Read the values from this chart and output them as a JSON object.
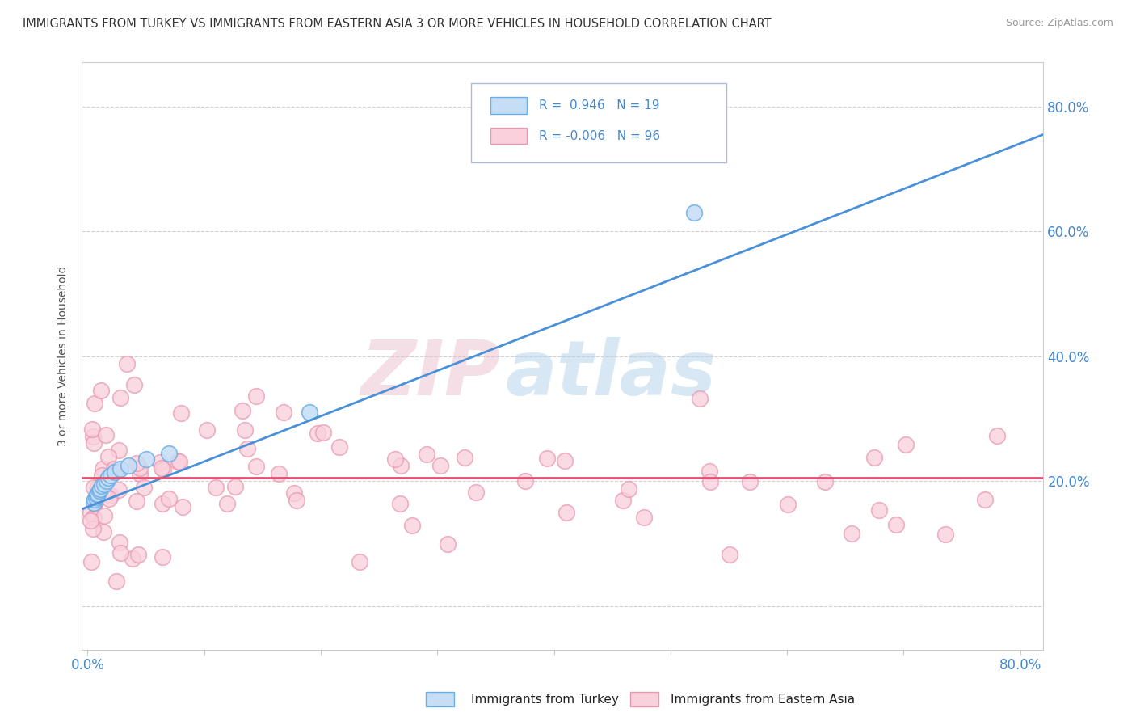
{
  "title": "IMMIGRANTS FROM TURKEY VS IMMIGRANTS FROM EASTERN ASIA 3 OR MORE VEHICLES IN HOUSEHOLD CORRELATION CHART",
  "source": "Source: ZipAtlas.com",
  "ylabel": "3 or more Vehicles in Household",
  "ylabel_right_ticks": [
    "20.0%",
    "40.0%",
    "60.0%",
    "80.0%"
  ],
  "ylabel_right_vals": [
    0.2,
    0.4,
    0.6,
    0.8
  ],
  "xlim": [
    -0.005,
    0.82
  ],
  "ylim": [
    -0.07,
    0.87
  ],
  "R_turkey": 0.946,
  "N_turkey": 19,
  "R_eastern_asia": -0.006,
  "N_eastern_asia": 96,
  "turkey_color": "#c5ddf5",
  "turkey_edge_color": "#6aaee8",
  "turkey_line_color": "#4a90d9",
  "eastern_asia_color": "#f9d0dc",
  "eastern_asia_edge_color": "#e899b0",
  "eastern_asia_line_color": "#e05070",
  "watermark_zip": "ZIP",
  "watermark_atlas": "atlas",
  "background_color": "#ffffff",
  "grid_color": "#cccccc",
  "title_color": "#333333",
  "axis_color": "#4488cc",
  "turkey_line_y0": 0.155,
  "turkey_line_y1": 0.755,
  "ea_line_y": 0.205,
  "grid_yticks": [
    0.0,
    0.2,
    0.4,
    0.6,
    0.8
  ]
}
